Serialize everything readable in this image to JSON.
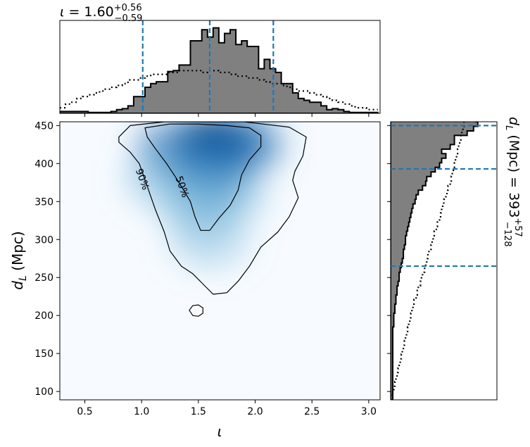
{
  "title_top": {
    "symbol": "ι",
    "text": " = 1.60",
    "sup": "+0.56",
    "sub": "−0.59"
  },
  "title_right": {
    "text": "d",
    "sub": "L",
    "text2": " (Mpc) = 393",
    "sup": "+57",
    "sub2": "−128"
  },
  "colors": {
    "hist_fill": "#808080",
    "hist_edge": "#000000",
    "quantile_line": "#1f77b4",
    "colormap": "Blues"
  },
  "chart_data": [
    {
      "type": "heatmap",
      "description_role": "joint",
      "xlabel": "ι",
      "ylabel": "d_L (Mpc)",
      "xlim": [
        0.28,
        3.1
      ],
      "ylim": [
        89,
        455
      ],
      "xticks": [
        "0.5",
        "1.0",
        "1.5",
        "2.0",
        "2.5",
        "3.0"
      ],
      "yticks": [
        "100",
        "150",
        "200",
        "250",
        "300",
        "350",
        "400",
        "450"
      ],
      "density_peaks": [
        {
          "x": 1.65,
          "y": 428,
          "weight": 1.0
        },
        {
          "x": 1.6,
          "y": 392,
          "weight": 0.8
        },
        {
          "x": 1.3,
          "y": 420,
          "weight": 0.55
        },
        {
          "x": 1.9,
          "y": 425,
          "weight": 0.6
        },
        {
          "x": 1.5,
          "y": 345,
          "weight": 0.4
        },
        {
          "x": 1.75,
          "y": 360,
          "weight": 0.35
        },
        {
          "x": 1.2,
          "y": 380,
          "weight": 0.3
        },
        {
          "x": 1.6,
          "y": 300,
          "weight": 0.2
        }
      ],
      "contours": [
        {
          "label": "50%",
          "points": [
            [
              1.03,
              447
            ],
            [
              1.25,
              452
            ],
            [
              1.5,
              452
            ],
            [
              1.75,
              450
            ],
            [
              1.95,
              447
            ],
            [
              2.05,
              437
            ],
            [
              2.05,
              422
            ],
            [
              1.95,
              405
            ],
            [
              1.88,
              385
            ],
            [
              1.85,
              365
            ],
            [
              1.78,
              345
            ],
            [
              1.68,
              328
            ],
            [
              1.6,
              312
            ],
            [
              1.52,
              312
            ],
            [
              1.47,
              330
            ],
            [
              1.43,
              350
            ],
            [
              1.37,
              365
            ],
            [
              1.3,
              382
            ],
            [
              1.22,
              400
            ],
            [
              1.12,
              420
            ],
            [
              1.05,
              435
            ]
          ]
        },
        {
          "label": "90%",
          "points": [
            [
              0.8,
              435
            ],
            [
              0.9,
              450
            ],
            [
              1.2,
              455
            ],
            [
              1.9,
              455
            ],
            [
              2.3,
              448
            ],
            [
              2.45,
              435
            ],
            [
              2.42,
              410
            ],
            [
              2.35,
              390
            ],
            [
              2.33,
              378
            ],
            [
              2.38,
              355
            ],
            [
              2.3,
              330
            ],
            [
              2.2,
              310
            ],
            [
              2.05,
              290
            ],
            [
              1.95,
              265
            ],
            [
              1.85,
              245
            ],
            [
              1.75,
              230
            ],
            [
              1.63,
              228
            ],
            [
              1.55,
              240
            ],
            [
              1.45,
              255
            ],
            [
              1.35,
              265
            ],
            [
              1.25,
              285
            ],
            [
              1.2,
              310
            ],
            [
              1.12,
              340
            ],
            [
              1.05,
              370
            ],
            [
              0.98,
              400
            ],
            [
              0.9,
              415
            ],
            [
              0.8,
              428
            ]
          ]
        },
        {
          "label": "",
          "points": [
            [
              1.42,
              207
            ],
            [
              1.45,
              213
            ],
            [
              1.5,
              214
            ],
            [
              1.54,
              210
            ],
            [
              1.54,
              203
            ],
            [
              1.5,
              199
            ],
            [
              1.45,
              200
            ]
          ]
        }
      ]
    },
    {
      "type": "histogram",
      "description_role": "top marginal of ι",
      "bin_edges_start": 0.28,
      "bin_width": 0.05,
      "counts": [
        0.1,
        0.1,
        0.1,
        0.1,
        0.1,
        0.05,
        0.05,
        0.05,
        0.05,
        0.1,
        0.2,
        0.25,
        0.4,
        0.9,
        0.9,
        1.4,
        1.6,
        1.7,
        1.7,
        2.25,
        2.3,
        2.6,
        2.6,
        3.9,
        3.9,
        4.5,
        4.1,
        4.6,
        3.8,
        4.3,
        4.5,
        3.7,
        3.9,
        3.6,
        3.6,
        2.4,
        2.9,
        2.4,
        2.2,
        1.6,
        1.6,
        1.1,
        0.8,
        0.7,
        0.6,
        0.6,
        0.4,
        0.2,
        0.25,
        0.2,
        0.1,
        0.05,
        0.05,
        0.05,
        0.05,
        0.05
      ],
      "prior_counts": [
        0.3,
        0.5,
        0.6,
        0.8,
        0.9,
        1.0,
        1.1,
        1.2,
        1.3,
        1.4,
        1.5,
        1.6,
        1.8,
        1.8,
        1.9,
        2.0,
        2.1,
        2.1,
        2.1,
        2.2,
        2.2,
        2.3,
        2.3,
        2.3,
        2.3,
        2.2,
        2.3,
        2.3,
        2.2,
        2.2,
        2.1,
        2.0,
        2.0,
        1.9,
        1.9,
        1.8,
        1.7,
        1.6,
        1.6,
        1.5,
        1.4,
        1.3,
        1.2,
        1.2,
        1.1,
        1.0,
        0.9,
        0.8,
        0.7,
        0.6,
        0.5,
        0.4,
        0.3,
        0.3,
        0.2,
        0.2
      ],
      "ylim": [
        0,
        5
      ],
      "quantiles": [
        1.01,
        1.6,
        2.16
      ]
    },
    {
      "type": "histogram",
      "description_role": "right marginal of d_L (Mpc)",
      "bin_edges_start": 89,
      "bin_width": 6,
      "counts": [
        0.02,
        0.02,
        0.02,
        0.02,
        0.02,
        0.02,
        0.02,
        0.02,
        0.02,
        0.02,
        0.02,
        0.02,
        0.02,
        0.02,
        0.02,
        0.02,
        0.03,
        0.03,
        0.03,
        0.04,
        0.04,
        0.05,
        0.05,
        0.06,
        0.06,
        0.07,
        0.08,
        0.08,
        0.09,
        0.1,
        0.11,
        0.12,
        0.12,
        0.13,
        0.14,
        0.14,
        0.15,
        0.16,
        0.17,
        0.18,
        0.19,
        0.2,
        0.21,
        0.23,
        0.24,
        0.26,
        0.3,
        0.33,
        0.34,
        0.38,
        0.42,
        0.46,
        0.48,
        0.52,
        0.48,
        0.56,
        0.6,
        0.6,
        0.72,
        0.78,
        0.82,
        0.8,
        0.88,
        0.9,
        0.95
      ],
      "prior_counts": [
        0.0,
        0.02,
        0.03,
        0.04,
        0.05,
        0.06,
        0.07,
        0.08,
        0.09,
        0.1,
        0.11,
        0.12,
        0.13,
        0.14,
        0.15,
        0.16,
        0.17,
        0.18,
        0.19,
        0.2,
        0.21,
        0.22,
        0.24,
        0.25,
        0.26,
        0.28,
        0.29,
        0.3,
        0.32,
        0.33,
        0.34,
        0.35,
        0.36,
        0.38,
        0.39,
        0.4,
        0.41,
        0.43,
        0.44,
        0.46,
        0.47,
        0.48,
        0.49,
        0.5,
        0.52,
        0.53,
        0.54,
        0.56,
        0.57,
        0.58,
        0.59,
        0.6,
        0.61,
        0.62,
        0.63,
        0.64,
        0.65,
        0.66,
        0.67,
        0.68,
        0.69,
        0.7,
        0.71,
        0.72,
        0.73
      ],
      "xlim": [
        0,
        1
      ],
      "quantiles": [
        265,
        393,
        450
      ]
    }
  ]
}
